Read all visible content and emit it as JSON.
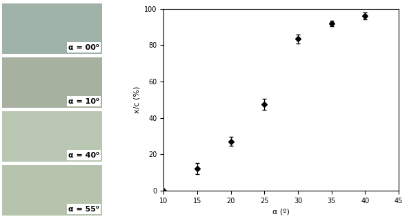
{
  "chart_data": {
    "type": "scatter",
    "x": [
      10,
      15,
      20,
      25,
      30,
      35,
      40
    ],
    "values": [
      0,
      12,
      27,
      47.5,
      83.5,
      92,
      96
    ],
    "error": [
      0,
      3,
      2.5,
      3,
      2.5,
      1.5,
      2
    ],
    "color": "#000000",
    "marker": "diamond",
    "x_label": "α (º)",
    "y_label": "x/c (%)",
    "xlim": [
      10,
      45
    ],
    "xticks": [
      10,
      15,
      20,
      25,
      30,
      35,
      40,
      45
    ],
    "ylim": [
      0,
      100
    ],
    "yticks": [
      0,
      20,
      40,
      60,
      80,
      100
    ],
    "grid": false
  },
  "photo_labels": [
    "α = 00⁰",
    "α = 10⁰",
    "α = 40⁰",
    "α = 55⁰"
  ]
}
